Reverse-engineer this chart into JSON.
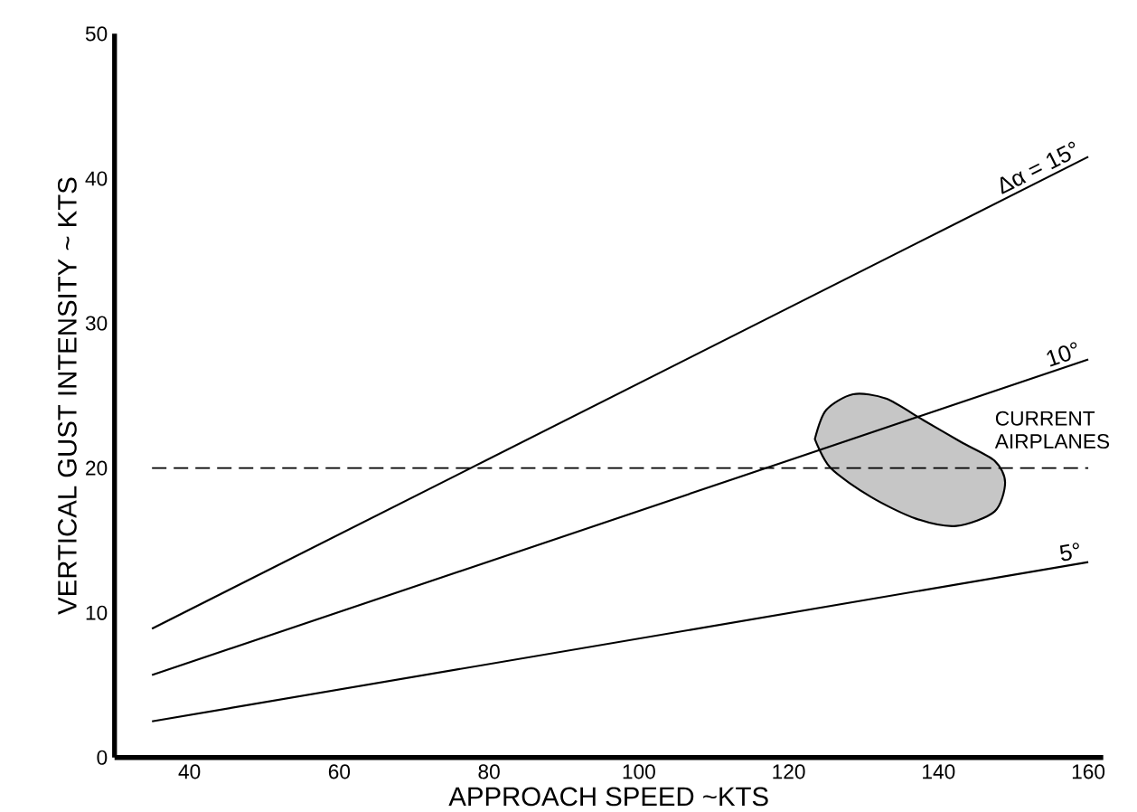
{
  "chart_data": {
    "type": "line",
    "xlabel": "APPROACH SPEED ~KTS",
    "ylabel": "VERTICAL GUST INTENSITY ~ KTS",
    "x": [
      35,
      160
    ],
    "series": [
      {
        "name": "CURRENT AIRPLANES",
        "type": "area",
        "color": "#000000",
        "x": [
          123.5,
          125,
          128.6,
          133,
          138,
          143,
          147.5,
          148.9,
          147.5,
          142.4,
          137,
          131,
          125.6,
          123.5
        ],
        "values": [
          22.0,
          24.0,
          25.1,
          24.8,
          23.3,
          21.8,
          20.5,
          19.0,
          17.0,
          16.0,
          16.5,
          18.0,
          20.0,
          22.0
        ]
      },
      {
        "name": "Δα = 15°",
        "color": "#000000",
        "values": [
          8.9,
          41.5
        ]
      },
      {
        "name": "10°",
        "color": "#000000",
        "values": [
          5.7,
          27.5
        ]
      },
      {
        "name": "5°",
        "color": "#000000",
        "values": [
          2.5,
          13.5
        ]
      }
    ],
    "xlim": [
      30,
      162
    ],
    "ylim": [
      0,
      50
    ],
    "xticks": [
      40,
      60,
      80,
      100,
      120,
      140,
      160
    ],
    "yticks": [
      0,
      10,
      20,
      30,
      40,
      50
    ],
    "ref_lines": [
      {
        "axis": "y",
        "value": 20,
        "line_style": "dashed",
        "color": "#000000"
      }
    ],
    "grid": false,
    "marker": "none",
    "line_style": "solid"
  }
}
